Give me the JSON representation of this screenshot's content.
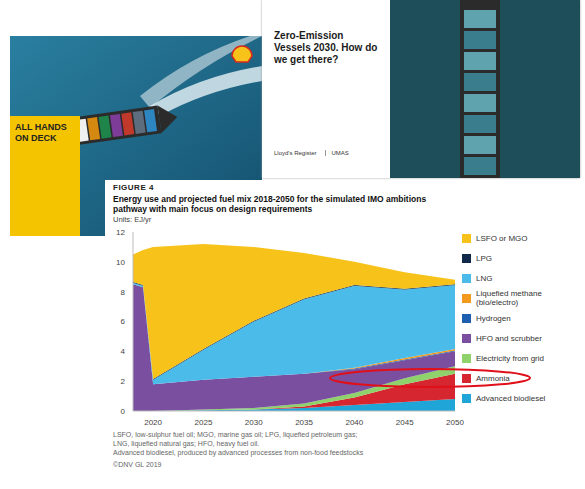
{
  "covers": [
    {
      "title": "ALL HANDS ON DECK"
    },
    {
      "title": "Zero-Emission Vessels 2030. How do we get there?",
      "logos": [
        "Lloyd's Register",
        "UMAS"
      ]
    }
  ],
  "chart_data": {
    "type": "area",
    "stacked": true,
    "figure_label": "FIGURE 4",
    "title": "Energy use and projected fuel mix 2018-2050 for the simulated IMO ambitions pathway with main focus on design requirements",
    "y_label": "Units: EJ/yr",
    "x": [
      2018,
      2019,
      2020,
      2025,
      2030,
      2035,
      2040,
      2045,
      2050
    ],
    "xlim": [
      2018,
      2050
    ],
    "xticks": [
      2020,
      2025,
      2030,
      2035,
      2040,
      2045,
      2050
    ],
    "ylim": [
      0,
      12
    ],
    "yticks": [
      0,
      2,
      4,
      6,
      8,
      10,
      12
    ],
    "grid": false,
    "legend": "right",
    "series": [
      {
        "name": "LSFO or MGO",
        "color": "#f7c31a",
        "values": [
          1.85,
          2.35,
          8.85,
          7.05,
          4.95,
          3.05,
          1.55,
          1.1,
          0.3
        ]
      },
      {
        "name": "LPG",
        "color": "#10284a",
        "values": [
          0.05,
          0.05,
          0.05,
          0.05,
          0.05,
          0.05,
          0.05,
          0.05,
          0.05
        ]
      },
      {
        "name": "LNG",
        "color": "#4bbbe9",
        "values": [
          0.1,
          0.1,
          0.3,
          2.0,
          3.7,
          5.0,
          5.5,
          4.6,
          4.3
        ]
      },
      {
        "name": "Liquefied methane (bio/electro)",
        "color": "#f39a1e",
        "values": [
          0,
          0,
          0,
          0,
          0,
          0,
          0.05,
          0.1,
          0.1
        ]
      },
      {
        "name": "Hydrogen",
        "color": "#1f5fb0",
        "values": [
          0,
          0,
          0,
          0,
          0,
          0,
          0.05,
          0.05,
          0.05
        ]
      },
      {
        "name": "HFO and scrubber",
        "color": "#7b4fa0",
        "values": [
          8.5,
          8.3,
          1.8,
          2.0,
          2.1,
          2.0,
          1.6,
          1.2,
          1.0
        ]
      },
      {
        "name": "Electricity from grid",
        "color": "#8fd16a",
        "values": [
          0,
          0,
          0,
          0.05,
          0.1,
          0.2,
          0.3,
          0.4,
          0.5
        ]
      },
      {
        "name": "Ammonia",
        "color": "#d6262f",
        "values": [
          0,
          0,
          0,
          0,
          0,
          0.1,
          0.5,
          1.2,
          1.7
        ]
      },
      {
        "name": "Advanced biodiesel",
        "color": "#1fa5d8",
        "values": [
          0,
          0,
          0,
          0.05,
          0.1,
          0.2,
          0.4,
          0.6,
          0.8
        ]
      }
    ],
    "notes": [
      "LSFO, low-sulphur fuel oil; MGO, marine gas oil; LPG, liquefied petroleum gas;",
      "LNG, liquefied natural gas; HFO, heavy fuel oil.",
      "Advanced biodiesel, produced by advanced processes from non-food feedstocks",
      "©DNV GL 2019"
    ]
  }
}
